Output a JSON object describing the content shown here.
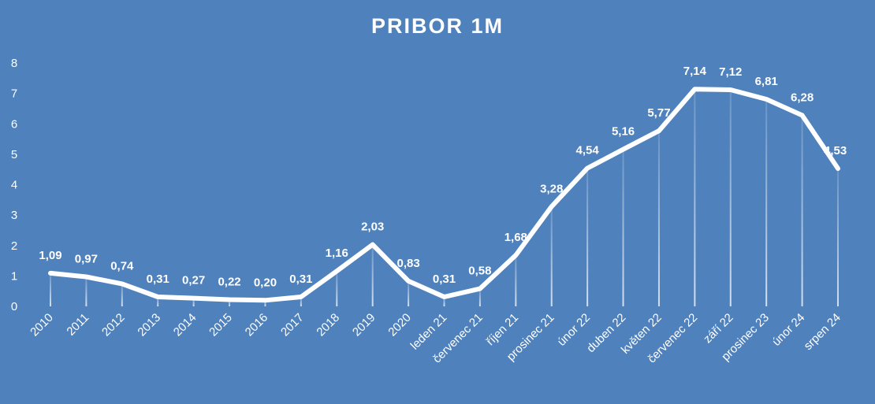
{
  "chart_data": {
    "type": "line",
    "title": "PRIBOR 1M",
    "xlabel": "",
    "ylabel": "",
    "ylim": [
      0,
      8
    ],
    "y_ticks": [
      "0",
      "1",
      "2",
      "3",
      "4",
      "5",
      "6",
      "7",
      "8"
    ],
    "grid": false,
    "drop_lines": true,
    "categories": [
      "2010",
      "2011",
      "2012",
      "2013",
      "2014",
      "2015",
      "2016",
      "2017",
      "2018",
      "2019",
      "2020",
      "leden 21",
      "červenec 21",
      "říjen 21",
      "prosinec 21",
      "únor 22",
      "duben 22",
      "květen 22",
      "červenec 22",
      "září 22",
      "prosinec 23",
      "únor 24",
      "srpen 24"
    ],
    "values": [
      1.09,
      0.97,
      0.74,
      0.31,
      0.27,
      0.22,
      0.2,
      0.31,
      1.16,
      2.03,
      0.83,
      0.31,
      0.58,
      1.68,
      3.28,
      4.54,
      5.16,
      5.77,
      7.14,
      7.12,
      6.81,
      6.28,
      4.53
    ],
    "data_labels": [
      "1,09",
      "0,97",
      "0,74",
      "0,31",
      "0,27",
      "0,22",
      "0,20",
      "0,31",
      "1,16",
      "2,03",
      "0,83",
      "0,31",
      "0,58",
      "1,68",
      "3,28",
      "4,54",
      "5,16",
      "5,77",
      "7,14",
      "7,12",
      "6,81",
      "6,28",
      "4,53"
    ]
  },
  "colors": {
    "background": "#4f81bd",
    "line": "#ffffff",
    "text": "#ffffff"
  }
}
